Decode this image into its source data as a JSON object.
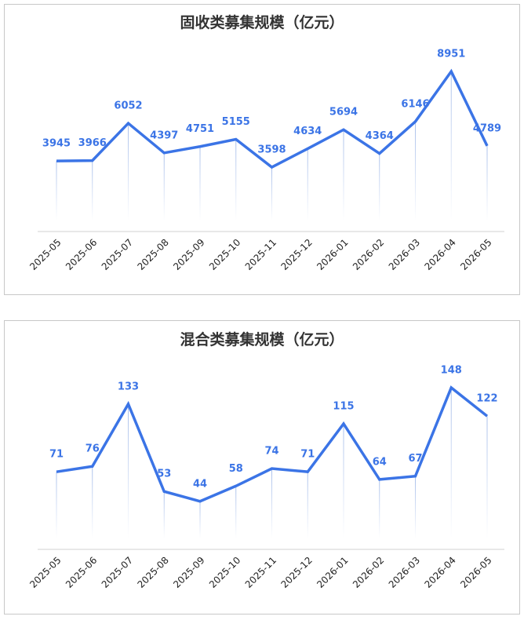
{
  "chart_data": [
    {
      "type": "line",
      "title": "固收类募集规模（亿元）",
      "color": "#3b74e6",
      "categories": [
        "2025-05",
        "2025-06",
        "2025-07",
        "2025-08",
        "2025-09",
        "2025-10",
        "2025-11",
        "2025-12",
        "2026-01",
        "2026-02",
        "2026-03",
        "2026-04",
        "2026-05"
      ],
      "values": [
        3945,
        3966,
        6052,
        4397,
        4751,
        5155,
        3598,
        4634,
        5694,
        4364,
        6146,
        8951,
        4789
      ]
    },
    {
      "type": "line",
      "title": "混合类募集规模（亿元）",
      "color": "#3b74e6",
      "categories": [
        "2025-05",
        "2025-06",
        "2025-07",
        "2025-08",
        "2025-09",
        "2025-10",
        "2025-11",
        "2025-12",
        "2026-01",
        "2026-02",
        "2026-03",
        "2026-04",
        "2026-05"
      ],
      "values": [
        71,
        76,
        133,
        53,
        44,
        58,
        74,
        71,
        115,
        64,
        67,
        148,
        122
      ]
    }
  ]
}
